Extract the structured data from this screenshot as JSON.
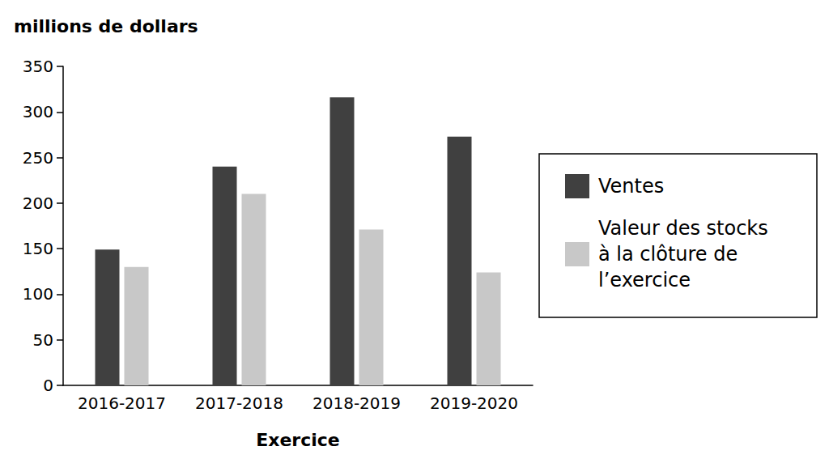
{
  "chart_data": {
    "type": "bar",
    "xlabel": "Exercice",
    "ylabel": "millions de dollars",
    "categories": [
      "2016-2017",
      "2017-2018",
      "2018-2019",
      "2019-2020"
    ],
    "series": [
      {
        "name": "Ventes",
        "color": "#404040",
        "values": [
          149,
          240,
          316,
          273
        ]
      },
      {
        "name": "Valeur des stocks à la clôture de l’exercice",
        "color": "#c8c8c8",
        "values": [
          130,
          210,
          171,
          124
        ]
      }
    ],
    "ylim": [
      0,
      350
    ],
    "yticks": [
      0,
      50,
      100,
      150,
      200,
      250,
      300,
      350
    ],
    "grid": false,
    "legend": "right"
  }
}
